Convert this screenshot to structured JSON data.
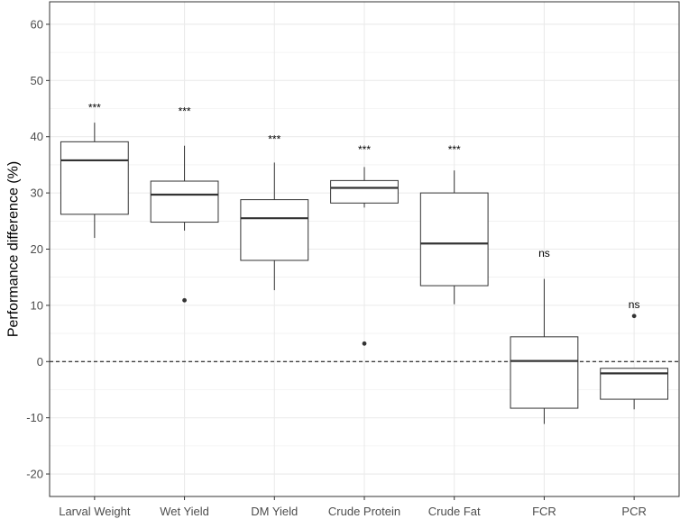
{
  "chart_data": {
    "type": "box",
    "ylabel": "Performance difference (%)",
    "xlabel": "",
    "ylim": [
      -24,
      64
    ],
    "yticks": [
      -20,
      -10,
      0,
      10,
      20,
      30,
      40,
      50,
      60
    ],
    "ytick_labels": [
      "-20",
      "-10",
      "0",
      "10",
      "20",
      "30",
      "40",
      "50",
      "60"
    ],
    "grid": true,
    "reference_line": {
      "y": 0,
      "style": "dashed"
    },
    "categories": [
      "Larval Weight",
      "Wet Yield",
      "DM Yield",
      "Crude Protein",
      "Crude Fat",
      "FCR",
      "PCR"
    ],
    "boxes": [
      {
        "category": "Larval Weight",
        "whisker_low": 22,
        "q1": 26.2,
        "median": 35.8,
        "q3": 39.1,
        "whisker_high": 42.5,
        "outliers": [],
        "significance": "***",
        "sig_y": 44.5
      },
      {
        "category": "Wet Yield",
        "whisker_low": 23.3,
        "q1": 24.8,
        "median": 29.7,
        "q3": 32.1,
        "whisker_high": 38.4,
        "outliers": [
          10.9
        ],
        "significance": "***",
        "sig_y": 43.9
      },
      {
        "category": "DM Yield",
        "whisker_low": 12.7,
        "q1": 18,
        "median": 25.5,
        "q3": 28.8,
        "whisker_high": 35.4,
        "outliers": [],
        "significance": "***",
        "sig_y": 38.9
      },
      {
        "category": "Crude Protein",
        "whisker_low": 27.4,
        "q1": 28.2,
        "median": 30.9,
        "q3": 32.2,
        "whisker_high": 34.6,
        "outliers": [
          3.2
        ],
        "significance": "***",
        "sig_y": 37.1
      },
      {
        "category": "Crude Fat",
        "whisker_low": 10.2,
        "q1": 13.5,
        "median": 21,
        "q3": 30,
        "whisker_high": 34,
        "outliers": [],
        "significance": "***",
        "sig_y": 37.1
      },
      {
        "category": "FCR",
        "whisker_low": -11.1,
        "q1": -8.3,
        "median": 0.1,
        "q3": 4.4,
        "whisker_high": 14.7,
        "outliers": [],
        "significance": "ns",
        "sig_y": 18.6
      },
      {
        "category": "PCR",
        "whisker_low": -8.5,
        "q1": -6.7,
        "median": -2.1,
        "q3": -1.2,
        "whisker_high": -1.2,
        "outliers": [
          8.1
        ],
        "significance": "ns",
        "sig_y": 9.5
      }
    ],
    "colors": {
      "grid": "#ebebeb",
      "box": "#333333",
      "axis": "#333333",
      "text": "#4d4d4d"
    }
  }
}
